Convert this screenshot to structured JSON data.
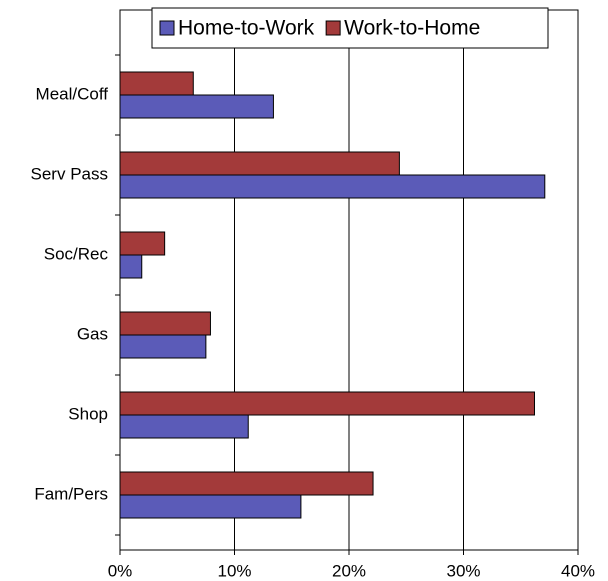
{
  "chart_data": {
    "type": "hbar",
    "categories": [
      "Meal/Coff",
      "Serv Pass",
      "Soc/Rec",
      "Gas",
      "Shop",
      "Fam/Pers"
    ],
    "series": [
      {
        "name": "Home-to-Work",
        "color": "#5b5bb8",
        "values": [
          13.4,
          37.1,
          1.9,
          7.5,
          11.2,
          15.8
        ]
      },
      {
        "name": "Work-to-Home",
        "color": "#a33a3a",
        "values": [
          6.4,
          24.4,
          3.9,
          7.9,
          36.2,
          22.1
        ]
      }
    ],
    "xlim": [
      0,
      40
    ],
    "xticks": [
      {
        "value": 0,
        "label": "0%"
      },
      {
        "value": 10,
        "label": "10%"
      },
      {
        "value": 20,
        "label": "20%"
      },
      {
        "value": 30,
        "label": "30%"
      },
      {
        "value": 40,
        "label": "40%"
      }
    ],
    "grid": true
  }
}
